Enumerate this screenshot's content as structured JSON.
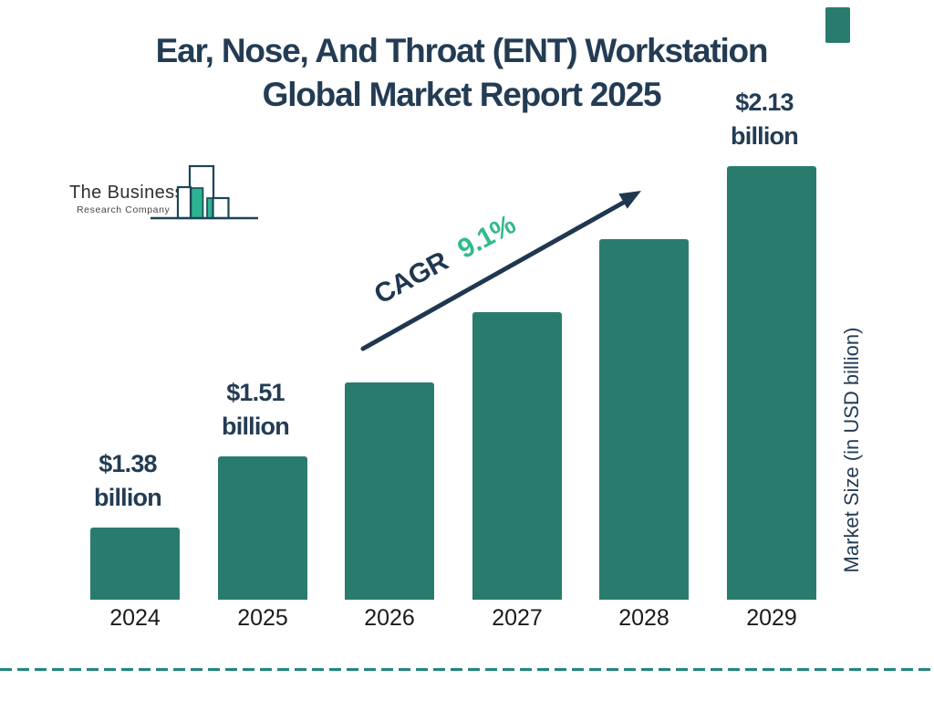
{
  "title": {
    "line1": "Ear, Nose, And Throat (ENT) Workstation",
    "line2": "Global Market Report 2025"
  },
  "logo": {
    "company_line1": "The Business",
    "company_line2": "Research Company"
  },
  "cagr_label": {
    "prefix": "CAGR",
    "value": "9.1%"
  },
  "y_axis_label": "Market Size (in USD billion)",
  "chart_data": {
    "type": "bar",
    "title": "Ear, Nose, And Throat (ENT) Workstation Global Market Report 2025",
    "categories": [
      "2024",
      "2025",
      "2026",
      "2027",
      "2028",
      "2029"
    ],
    "values": [
      1.38,
      1.51,
      1.65,
      1.8,
      1.96,
      2.13
    ],
    "unit": "USD billion",
    "value_labels": [
      [
        "$1.38",
        "billion"
      ],
      [
        "$1.51",
        "billion"
      ],
      null,
      null,
      null,
      [
        "$2.13",
        "billion"
      ]
    ],
    "ylabel": "Market Size (in USD billion)",
    "xlabel": "",
    "cagr": "9.1%",
    "legend": "none",
    "grid": false,
    "bar_color": "#297C6D"
  },
  "colors": {
    "navy": "#233C54",
    "arrow_navy": "#1F3750",
    "teal_bar": "#297C6D",
    "green_accent": "#32BA8C",
    "dashed_line": "#21867E",
    "logo_teal": "#2CB392",
    "year_text": "#1B1B1B"
  }
}
